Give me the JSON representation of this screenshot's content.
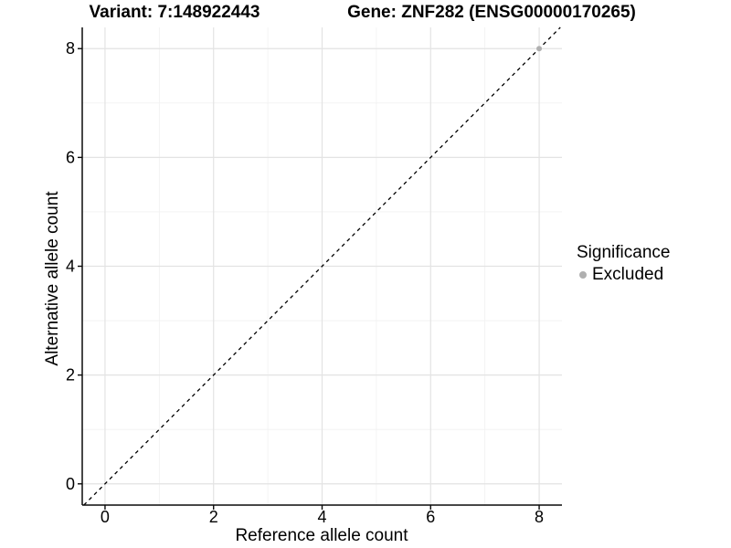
{
  "chart_data": {
    "type": "scatter",
    "titles": {
      "variant": "Variant: 7:148922443",
      "gene": "Gene: ZNF282 (ENSG00000170265)"
    },
    "xlabel": "Reference allele count",
    "ylabel": "Alternative allele count",
    "xlim": [
      -0.42,
      8.42
    ],
    "ylim": [
      -0.39,
      8.39
    ],
    "x_ticks": [
      0,
      2,
      4,
      6,
      8
    ],
    "y_ticks": [
      0,
      2,
      4,
      6,
      8
    ],
    "x_minor_ticks": [
      1,
      3,
      5,
      7
    ],
    "y_minor_ticks": [
      1,
      3,
      5,
      7
    ],
    "grid": "major+minor",
    "identity_line": {
      "style": "dashed",
      "color": "#000000",
      "from": [
        -0.39,
        -0.39
      ],
      "to": [
        8.39,
        8.39
      ]
    },
    "series": [
      {
        "name": "Excluded",
        "color": "#b0b0b0",
        "points": [
          [
            8,
            8
          ]
        ]
      }
    ],
    "legend": {
      "title": "Significance",
      "position": "right",
      "entries": [
        {
          "label": "Excluded",
          "color": "#b0b0b0"
        }
      ]
    },
    "colors": {
      "grid_major": "#e3e3e3",
      "grid_minor": "#f1f1f1",
      "axis_line": "#0a0a0a",
      "tick_text": "#000000"
    }
  }
}
